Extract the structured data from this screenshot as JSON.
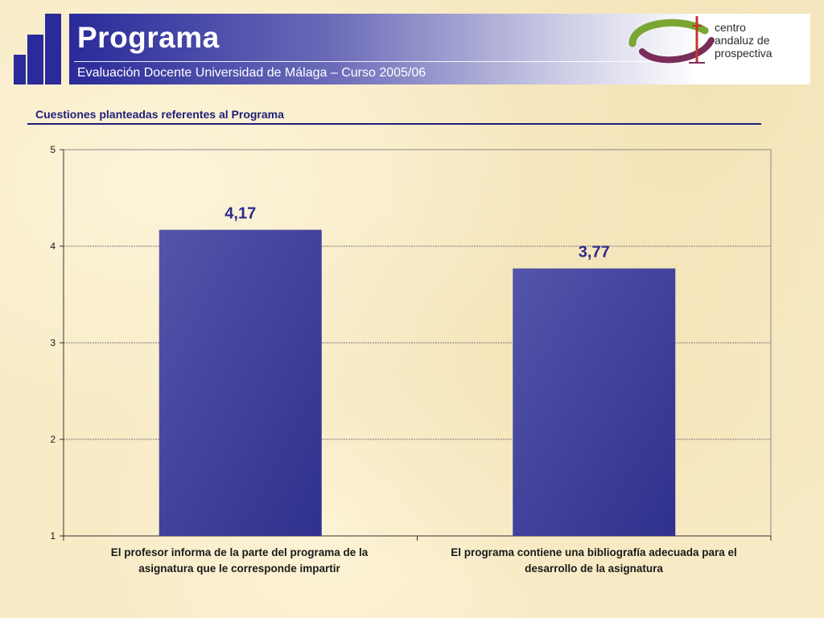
{
  "header": {
    "title": "Programa",
    "subtitle": "Evaluación Docente Universidad de Málaga – Curso 2005/06",
    "logo_lines": [
      "centro",
      "andaluz de",
      "prospectiva"
    ]
  },
  "section": {
    "title": "Cuestiones planteadas referentes al Programa"
  },
  "colors": {
    "bar": "#3a3a9e",
    "value_label": "#2a2a8c",
    "accent": "#2a2a9a"
  },
  "chart_data": {
    "type": "bar",
    "categories": [
      "El profesor informa de la parte del programa de la asignatura que le corresponde impartir",
      "El programa contiene una bibliografía adecuada para el desarrollo de la asignatura"
    ],
    "values": [
      4.17,
      3.77
    ],
    "value_labels": [
      "4,17",
      "3,77"
    ],
    "ylim": [
      1,
      5
    ],
    "yticks": [
      1,
      2,
      3,
      4,
      5
    ],
    "grid": true,
    "legend": "none"
  }
}
